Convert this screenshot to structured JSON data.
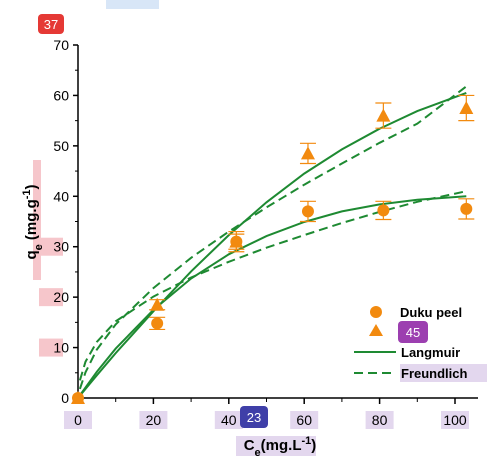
{
  "chart_data": {
    "type": "scatter",
    "xlabel": "Ce(mg.L-1)",
    "xlabel_parts": {
      "main": "C",
      "sub": "e",
      "unit": "(mg.L",
      "sup": "-1",
      "close": ")"
    },
    "ylabel": "qe (mg.g-1)",
    "ylabel_parts": {
      "main": "q",
      "sub": "e",
      "unit": " (mg.g",
      "sup": "-1",
      "close": ")"
    },
    "xlim": [
      0,
      106
    ],
    "ylim": [
      0,
      70
    ],
    "x_ticks": [
      0,
      20,
      40,
      60,
      80,
      100
    ],
    "y_ticks": [
      0,
      10,
      20,
      30,
      40,
      50,
      60,
      70
    ],
    "x_tick_labels": [
      "0",
      "20",
      "40",
      "60",
      "80",
      "100"
    ],
    "y_tick_labels": [
      "0",
      "10",
      "20",
      "30",
      "40",
      "50",
      "60",
      "70"
    ],
    "grid": false,
    "legend_position": "bottom-right",
    "colors": {
      "marker": "#f28a0f",
      "fit": "#1e8a32",
      "badge_red": "#e53935",
      "badge_blue": "#3f3fa8",
      "badge_purple": "#9c3fb0",
      "highlight_pink": "#f6c6cb",
      "highlight_lavender": "#e3d7ee",
      "highlight_blue": "#d8e6f7"
    },
    "series": [
      {
        "name": "Duku peel",
        "marker": "circle",
        "points": [
          {
            "x": 0,
            "y": 0,
            "err": 0
          },
          {
            "x": 21,
            "y": 14.8,
            "err": 1.2
          },
          {
            "x": 42,
            "y": 31,
            "err": 2
          },
          {
            "x": 61,
            "y": 37,
            "err": 2
          },
          {
            "x": 81,
            "y": 37.2,
            "err": 1.8
          },
          {
            "x": 103,
            "y": 37.5,
            "err": 2
          }
        ]
      },
      {
        "name": "",
        "marker": "triangle",
        "points": [
          {
            "x": 0,
            "y": 0,
            "err": 0
          },
          {
            "x": 21,
            "y": 18.5,
            "err": 1
          },
          {
            "x": 42,
            "y": 31,
            "err": 1.5
          },
          {
            "x": 61,
            "y": 48.5,
            "err": 2
          },
          {
            "x": 81,
            "y": 56,
            "err": 2.5
          },
          {
            "x": 103,
            "y": 57.5,
            "err": 2.5
          }
        ]
      },
      {
        "name": "Langmuir",
        "style": "solid",
        "curves": [
          {
            "x": [
              0,
              5,
              10,
              20,
              30,
              40,
              50,
              60,
              70,
              80,
              90,
              103
            ],
            "y": [
              0,
              5.2,
              9.8,
              17.5,
              23.7,
              28.5,
              32.1,
              34.9,
              37,
              38.4,
              39.3,
              40
            ]
          },
          {
            "x": [
              0,
              5,
              10,
              20,
              30,
              40,
              50,
              60,
              70,
              80,
              90,
              103
            ],
            "y": [
              0,
              4.5,
              8.9,
              17.2,
              25.1,
              32.3,
              38.8,
              44.5,
              49.3,
              53.4,
              56.9,
              60.5
            ]
          }
        ]
      },
      {
        "name": "Freundlich",
        "style": "dashed",
        "curves": [
          {
            "x": [
              0.5,
              2,
              5,
              10,
              20,
              30,
              40,
              50,
              60,
              70,
              80,
              90,
              103
            ],
            "y": [
              3.5,
              7.2,
              11.1,
              15.2,
              20.1,
              23.9,
              27,
              29.8,
              32.3,
              34.7,
              36.9,
              38.9,
              41
            ]
          },
          {
            "x": [
              0.5,
              2,
              5,
              10,
              20,
              30,
              40,
              50,
              60,
              70,
              80,
              90,
              103
            ],
            "y": [
              1.8,
              5.1,
              9.6,
              14.6,
              21.8,
              27.8,
              33,
              37.8,
              42.3,
              46.5,
              50.6,
              54.4,
              61.8
            ]
          }
        ]
      }
    ],
    "annotations": [
      "37",
      "23",
      "45"
    ]
  }
}
